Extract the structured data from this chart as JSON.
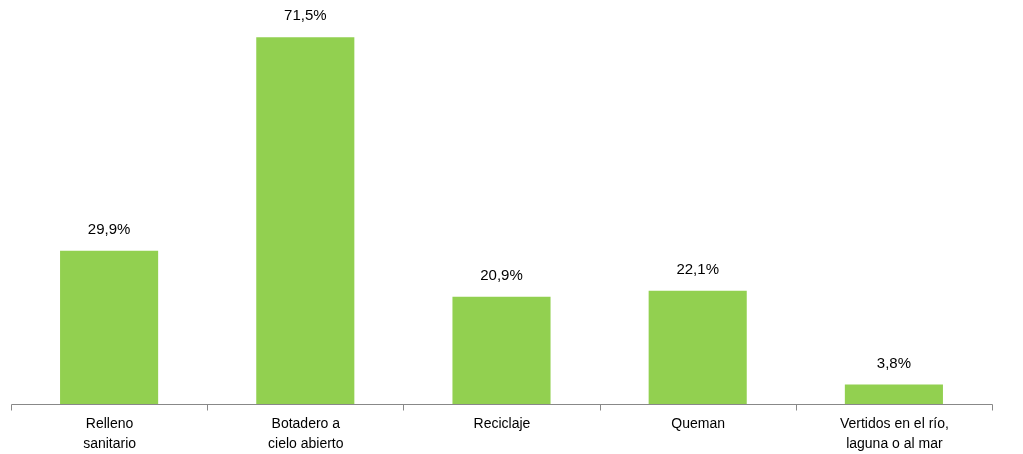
{
  "chart_data": {
    "type": "bar",
    "categories": [
      "Relleno sanitario",
      "Botadero a cielo abierto",
      "Reciclaje",
      "Queman",
      "Vertidos en el río, laguna o al mar"
    ],
    "values": [
      29.9,
      71.5,
      20.9,
      22.1,
      3.8
    ],
    "value_labels": [
      "29,9%",
      "71,5%",
      "20,9%",
      "22,1%",
      "3,8%"
    ],
    "color": "#92d050"
  }
}
